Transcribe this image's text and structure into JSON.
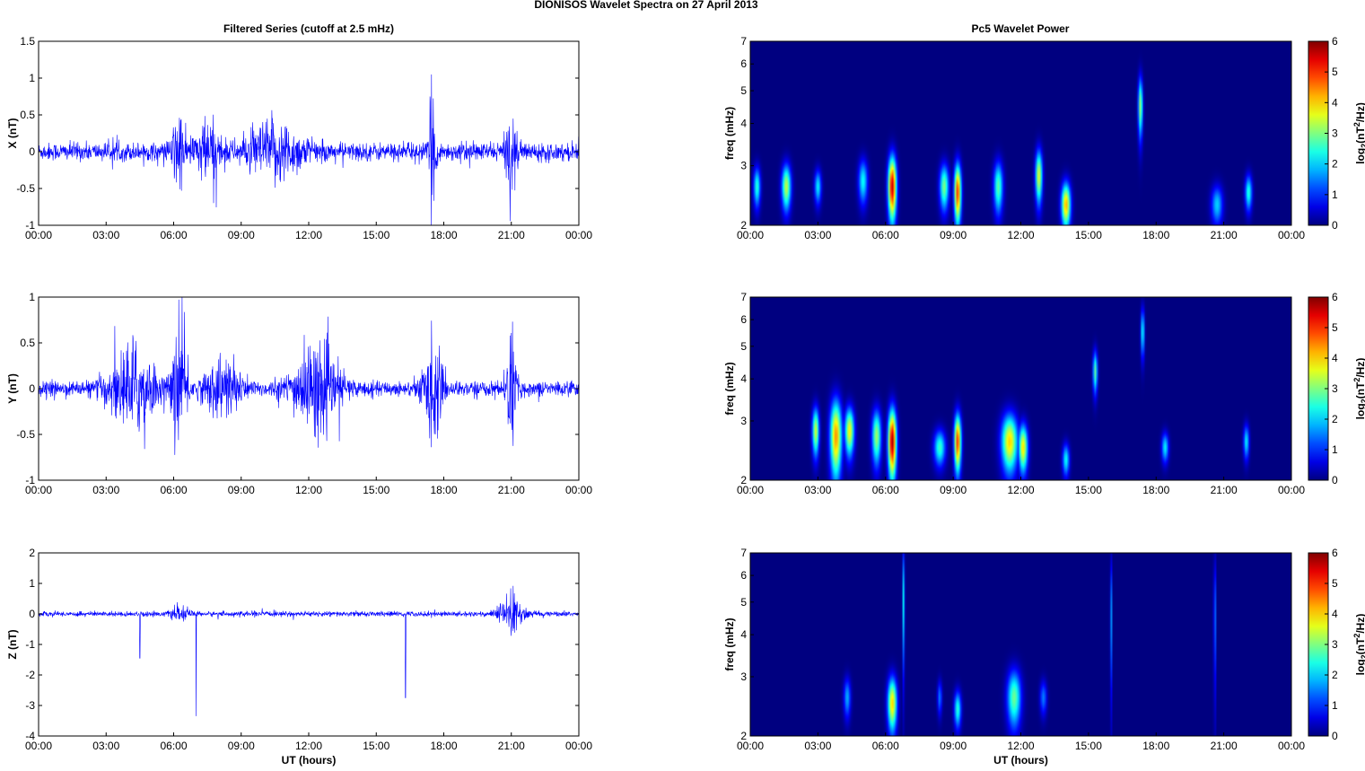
{
  "figure": {
    "title": "DIONISOS Wavelet Spectra on 27 April     2013",
    "left_title": "Filtered Series (cutoff at 2.5 mHz)",
    "right_title": "Pc5 Wavelet Power",
    "xlabel": "UT (hours)",
    "time_ticks": [
      "00:00",
      "03:00",
      "06:00",
      "09:00",
      "12:00",
      "15:00",
      "18:00",
      "21:00",
      "00:00"
    ],
    "freq_label": "freq (mHz)",
    "colorbar_label": "log2(nT2/Hz)",
    "colorbar_ticks": [
      "0",
      "1",
      "2",
      "3",
      "4",
      "5",
      "6"
    ]
  },
  "chart_data": [
    {
      "type": "line",
      "name": "X",
      "ylabel": "X (nT)",
      "xlim": [
        0,
        24
      ],
      "ylim": [
        -1,
        1.5
      ],
      "yticks": [
        "-1",
        "-0.5",
        "0",
        "0.5",
        "1",
        "1.5"
      ],
      "series_color": "#0000ff",
      "noise_level": 0.12,
      "bursts": [
        {
          "t": 6.2,
          "width": 0.25,
          "amp": 0.55
        },
        {
          "t": 7.5,
          "width": 0.6,
          "amp": 0.35
        },
        {
          "t": 10.5,
          "width": 1.2,
          "amp": 0.35
        },
        {
          "t": 17.5,
          "width": 0.15,
          "amp": 0.8
        },
        {
          "t": 21.0,
          "width": 0.2,
          "amp": 0.65
        }
      ]
    },
    {
      "type": "line",
      "name": "Y",
      "ylabel": "Y (nT)",
      "xlim": [
        0,
        24
      ],
      "ylim": [
        -1,
        1
      ],
      "yticks": [
        "-1",
        "-0.5",
        "0",
        "0.5",
        "1"
      ],
      "series_color": "#0000ff",
      "noise_level": 0.08,
      "bursts": [
        {
          "t": 4.2,
          "width": 1.0,
          "amp": 0.45
        },
        {
          "t": 6.3,
          "width": 0.3,
          "amp": 0.75
        },
        {
          "t": 8.2,
          "width": 0.8,
          "amp": 0.3
        },
        {
          "t": 12.3,
          "width": 1.0,
          "amp": 0.45
        },
        {
          "t": 17.5,
          "width": 0.4,
          "amp": 0.55
        },
        {
          "t": 21.0,
          "width": 0.2,
          "amp": 0.65
        }
      ]
    },
    {
      "type": "line",
      "name": "Z",
      "ylabel": "Z (nT)",
      "xlim": [
        0,
        24
      ],
      "ylim": [
        -4,
        2
      ],
      "yticks": [
        "-4",
        "-3",
        "-2",
        "-1",
        "0",
        "1",
        "2"
      ],
      "series_color": "#0000ff",
      "noise_level": 0.08,
      "bursts": [
        {
          "t": 6.3,
          "width": 0.4,
          "amp": 0.18
        },
        {
          "t": 21.0,
          "width": 0.5,
          "amp": 0.7
        }
      ],
      "spikes": [
        {
          "t": 4.5,
          "value": -1.45
        },
        {
          "t": 7.0,
          "value": -3.35
        },
        {
          "t": 16.3,
          "value": -2.75
        }
      ]
    },
    {
      "type": "heatmap",
      "name": "X wavelet power",
      "ylabel": "freq (mHz)",
      "xlim": [
        0,
        24
      ],
      "ylim": [
        2,
        7
      ],
      "yscale": "log",
      "yticks": [
        "2",
        "3",
        "4",
        "5",
        "6",
        "7"
      ],
      "clim": [
        0,
        6
      ],
      "colormap": "jet",
      "blobs": [
        {
          "t": 0.3,
          "f": 2.6,
          "dt": 0.15,
          "df": 0.35,
          "v": 2.5
        },
        {
          "t": 1.6,
          "f": 2.6,
          "dt": 0.2,
          "df": 0.4,
          "v": 3.4
        },
        {
          "t": 3.0,
          "f": 2.6,
          "dt": 0.15,
          "df": 0.3,
          "v": 2.2
        },
        {
          "t": 5.0,
          "f": 2.7,
          "dt": 0.2,
          "df": 0.4,
          "v": 2.3
        },
        {
          "t": 6.3,
          "f": 2.6,
          "dt": 0.18,
          "df": 0.55,
          "v": 5.6
        },
        {
          "t": 8.6,
          "f": 2.6,
          "dt": 0.2,
          "df": 0.4,
          "v": 3.0
        },
        {
          "t": 9.2,
          "f": 2.5,
          "dt": 0.15,
          "df": 0.5,
          "v": 5.0
        },
        {
          "t": 11.0,
          "f": 2.6,
          "dt": 0.2,
          "df": 0.45,
          "v": 2.8
        },
        {
          "t": 12.8,
          "f": 2.8,
          "dt": 0.15,
          "df": 0.5,
          "v": 3.6
        },
        {
          "t": 14.0,
          "f": 2.3,
          "dt": 0.2,
          "df": 0.35,
          "v": 4.2
        },
        {
          "t": 17.3,
          "f": 4.5,
          "dt": 0.1,
          "df": 0.9,
          "v": 3.2
        },
        {
          "t": 20.7,
          "f": 2.3,
          "dt": 0.25,
          "df": 0.3,
          "v": 2.0
        },
        {
          "t": 22.1,
          "f": 2.5,
          "dt": 0.15,
          "df": 0.3,
          "v": 2.5
        }
      ]
    },
    {
      "type": "heatmap",
      "name": "Y wavelet power",
      "ylabel": "freq (mHz)",
      "xlim": [
        0,
        24
      ],
      "ylim": [
        2,
        7
      ],
      "yscale": "log",
      "yticks": [
        "2",
        "3",
        "4",
        "5",
        "6",
        "7"
      ],
      "clim": [
        0,
        6
      ],
      "colormap": "jet",
      "blobs": [
        {
          "t": 2.9,
          "f": 2.8,
          "dt": 0.15,
          "df": 0.45,
          "v": 3.5
        },
        {
          "t": 3.8,
          "f": 2.7,
          "dt": 0.25,
          "df": 0.7,
          "v": 4.4
        },
        {
          "t": 4.4,
          "f": 2.8,
          "dt": 0.2,
          "df": 0.45,
          "v": 3.8
        },
        {
          "t": 5.6,
          "f": 2.7,
          "dt": 0.2,
          "df": 0.5,
          "v": 3.2
        },
        {
          "t": 6.3,
          "f": 2.6,
          "dt": 0.18,
          "df": 0.6,
          "v": 5.8
        },
        {
          "t": 8.4,
          "f": 2.5,
          "dt": 0.25,
          "df": 0.3,
          "v": 2.6
        },
        {
          "t": 9.2,
          "f": 2.6,
          "dt": 0.15,
          "df": 0.5,
          "v": 5.0
        },
        {
          "t": 11.5,
          "f": 2.6,
          "dt": 0.35,
          "df": 0.5,
          "v": 4.0
        },
        {
          "t": 12.1,
          "f": 2.5,
          "dt": 0.2,
          "df": 0.4,
          "v": 3.9
        },
        {
          "t": 14.0,
          "f": 2.3,
          "dt": 0.15,
          "df": 0.25,
          "v": 2.3
        },
        {
          "t": 15.3,
          "f": 4.2,
          "dt": 0.1,
          "df": 0.6,
          "v": 2.8
        },
        {
          "t": 17.4,
          "f": 5.5,
          "dt": 0.08,
          "df": 0.9,
          "v": 2.4
        },
        {
          "t": 18.4,
          "f": 2.5,
          "dt": 0.15,
          "df": 0.25,
          "v": 2.2
        },
        {
          "t": 22.0,
          "f": 2.6,
          "dt": 0.12,
          "df": 0.3,
          "v": 2.2
        }
      ]
    },
    {
      "type": "heatmap",
      "name": "Z wavelet power",
      "ylabel": "freq (mHz)",
      "xlim": [
        0,
        24
      ],
      "ylim": [
        2,
        7
      ],
      "yscale": "log",
      "yticks": [
        "2",
        "3",
        "4",
        "5",
        "6",
        "7"
      ],
      "clim": [
        0,
        6
      ],
      "colormap": "jet",
      "blobs": [
        {
          "t": 4.3,
          "f": 2.6,
          "dt": 0.15,
          "df": 0.35,
          "v": 1.8
        },
        {
          "t": 6.3,
          "f": 2.5,
          "dt": 0.2,
          "df": 0.45,
          "v": 4.0
        },
        {
          "t": 6.8,
          "f": 5.0,
          "dt": 0.05,
          "df": 2.0,
          "v": 2.2
        },
        {
          "t": 8.4,
          "f": 2.6,
          "dt": 0.1,
          "df": 0.3,
          "v": 1.5
        },
        {
          "t": 9.2,
          "f": 2.4,
          "dt": 0.15,
          "df": 0.3,
          "v": 2.5
        },
        {
          "t": 11.7,
          "f": 2.6,
          "dt": 0.3,
          "df": 0.5,
          "v": 2.9
        },
        {
          "t": 13.0,
          "f": 2.6,
          "dt": 0.15,
          "df": 0.3,
          "v": 1.5
        },
        {
          "t": 16.0,
          "f": 4.5,
          "dt": 0.04,
          "df": 2.0,
          "v": 1.8
        },
        {
          "t": 20.6,
          "f": 4.5,
          "dt": 0.05,
          "df": 2.0,
          "v": 1.6
        }
      ]
    }
  ]
}
